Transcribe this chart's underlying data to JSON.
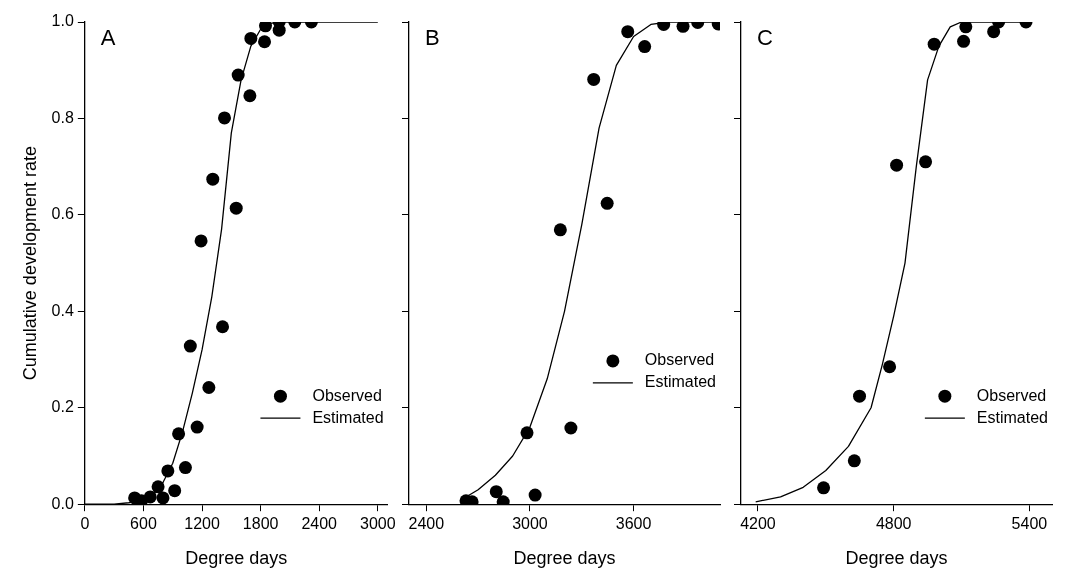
{
  "chart_data": [
    {
      "type": "scatter",
      "xlabel": "Degree days",
      "ylabel": "Cumulative development rate",
      "annotations": [
        "A"
      ],
      "xlim": [
        0,
        3100
      ],
      "xticks": [
        0,
        600,
        1200,
        1800,
        2400,
        3000
      ],
      "ylim": [
        0,
        1
      ],
      "yticks": [
        {
          "value": 0,
          "label": "0.0"
        },
        0.2,
        0.4,
        0.6,
        0.8,
        {
          "value": 1,
          "label": "1.0"
        }
      ],
      "grid": false,
      "legend": "bottom right",
      "series": [
        {
          "name": "Observed",
          "type": "scatter",
          "marker": "circle",
          "color": "#000000",
          "x": [
            510,
            580,
            670,
            750,
            800,
            850,
            920,
            960,
            1030,
            1080,
            1150,
            1190,
            1270,
            1310,
            1410,
            1430,
            1550,
            1570,
            1690,
            1700,
            1840,
            1850,
            1990,
            1990,
            2150,
            2320
          ],
          "values": [
            0.013,
            0.007,
            0.015,
            0.036,
            0.013,
            0.069,
            0.028,
            0.146,
            0.076,
            0.328,
            0.16,
            0.546,
            0.242,
            0.674,
            0.368,
            0.801,
            0.614,
            0.89,
            0.847,
            0.966,
            0.959,
            0.992,
            0.983,
            1.0,
            1.0,
            1.0
          ]
        },
        {
          "name": "Estimated",
          "type": "line",
          "color": "#000000",
          "x": [
            0,
            300,
            450,
            600,
            700,
            800,
            900,
            1000,
            1100,
            1200,
            1300,
            1400,
            1500,
            1600,
            1700,
            1800,
            1900,
            2000,
            2400,
            3000
          ],
          "values": [
            0,
            0,
            0.003,
            0.01,
            0.02,
            0.045,
            0.085,
            0.15,
            0.23,
            0.32,
            0.43,
            0.57,
            0.77,
            0.88,
            0.95,
            0.985,
            0.997,
            1,
            1,
            1
          ]
        }
      ]
    },
    {
      "type": "scatter",
      "xlabel": "Degree days",
      "annotations": [
        "B"
      ],
      "xlim": [
        2300,
        4100
      ],
      "xticks": [
        2400,
        3000,
        3600
      ],
      "ylim": [
        0,
        1
      ],
      "yticks": [
        {
          "value": 0,
          "label": null
        },
        {
          "value": 0.2,
          "label": null
        },
        {
          "value": 0.4,
          "label": null
        },
        {
          "value": 0.6,
          "label": null
        },
        {
          "value": 0.8,
          "label": null
        },
        {
          "value": 1,
          "label": null
        }
      ],
      "tick_labels": "x",
      "grid": false,
      "legend": "right",
      "series": [
        {
          "name": "Observed",
          "type": "scatter",
          "marker": "circle",
          "color": "#000000",
          "x": [
            2630,
            2665,
            2805,
            2845,
            2983,
            3030,
            3176,
            3237,
            3369,
            3447,
            3566,
            3664,
            3774,
            3886,
            3971,
            4090
          ],
          "values": [
            0.007,
            0.005,
            0.026,
            0.005,
            0.148,
            0.019,
            0.569,
            0.158,
            0.881,
            0.624,
            0.98,
            0.949,
            0.995,
            0.991,
            0.999,
            0.996
          ]
        },
        {
          "name": "Estimated",
          "type": "line",
          "color": "#000000",
          "x": [
            2630,
            2700,
            2800,
            2900,
            3000,
            3100,
            3200,
            3300,
            3400,
            3500,
            3600,
            3700,
            3800,
            4100
          ],
          "values": [
            0.015,
            0.03,
            0.06,
            0.1,
            0.16,
            0.26,
            0.4,
            0.58,
            0.78,
            0.91,
            0.97,
            0.995,
            1,
            1
          ]
        }
      ]
    },
    {
      "type": "scatter",
      "xlabel": "Degree days",
      "annotations": [
        "C"
      ],
      "xlim": [
        4125,
        5500
      ],
      "xticks": [
        4200,
        4800,
        5400
      ],
      "ylim": [
        0,
        1
      ],
      "yticks": [
        {
          "value": 0,
          "label": null
        },
        {
          "value": 0.2,
          "label": null
        },
        {
          "value": 0.4,
          "label": null
        },
        {
          "value": 0.6,
          "label": null
        },
        {
          "value": 0.8,
          "label": null
        },
        {
          "value": 1,
          "label": null
        }
      ],
      "tick_labels": "x",
      "grid": false,
      "legend": "bottom right",
      "series": [
        {
          "name": "Observed",
          "type": "scatter",
          "marker": "circle",
          "color": "#000000",
          "x": [
            4490,
            4626,
            4649,
            4782,
            4813,
            4941,
            4979,
            5109,
            5119,
            5242,
            5264,
            5385
          ],
          "values": [
            0.034,
            0.09,
            0.224,
            0.285,
            0.703,
            0.71,
            0.954,
            0.96,
            0.99,
            0.98,
            1.0,
            1.0
          ]
        },
        {
          "name": "Estimated",
          "type": "line",
          "color": "#000000",
          "x": [
            4190,
            4300,
            4400,
            4500,
            4600,
            4700,
            4750,
            4800,
            4850,
            4900,
            4950,
            5000,
            5050,
            5100,
            5380
          ],
          "values": [
            0.005,
            0.015,
            0.035,
            0.07,
            0.12,
            0.2,
            0.29,
            0.39,
            0.5,
            0.7,
            0.88,
            0.95,
            0.99,
            1,
            1
          ]
        }
      ]
    }
  ]
}
